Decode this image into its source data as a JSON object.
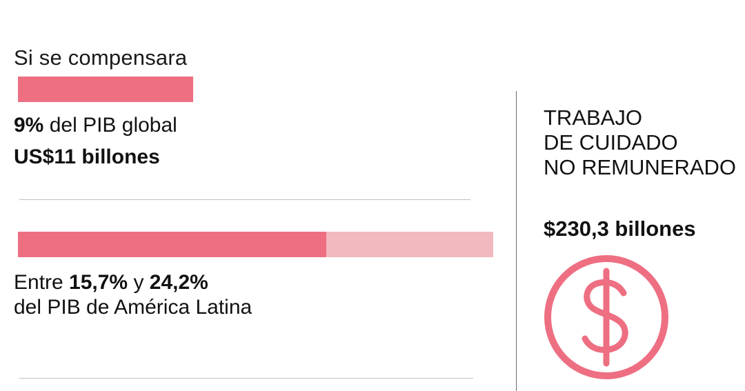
{
  "heading": "Si se compensara",
  "colors": {
    "accent": "#ee6f82",
    "accent_light": "#f2b9bf",
    "divider": "#bfbfbf"
  },
  "chart_data": [
    {
      "type": "bar",
      "description_line": "global",
      "values": [
        9
      ],
      "unit": "%",
      "text_pct": "9%",
      "text_rest": " del PIB global",
      "text_amount": "US$11 billones"
    },
    {
      "type": "bar",
      "description_line": "latam-range",
      "range": [
        15.7,
        24.2
      ],
      "unit": "%",
      "text_prefix": "Entre ",
      "text_low": "15,7%",
      "text_mid": " y ",
      "text_high": "24,2%",
      "text_rest": "del PIB de América Latina"
    }
  ],
  "side": {
    "title_lines": [
      "TRABAJO",
      "DE CUIDADO",
      "NO REMUNERADO"
    ],
    "value": "$230,3 billones",
    "icon": "dollar-icon"
  }
}
